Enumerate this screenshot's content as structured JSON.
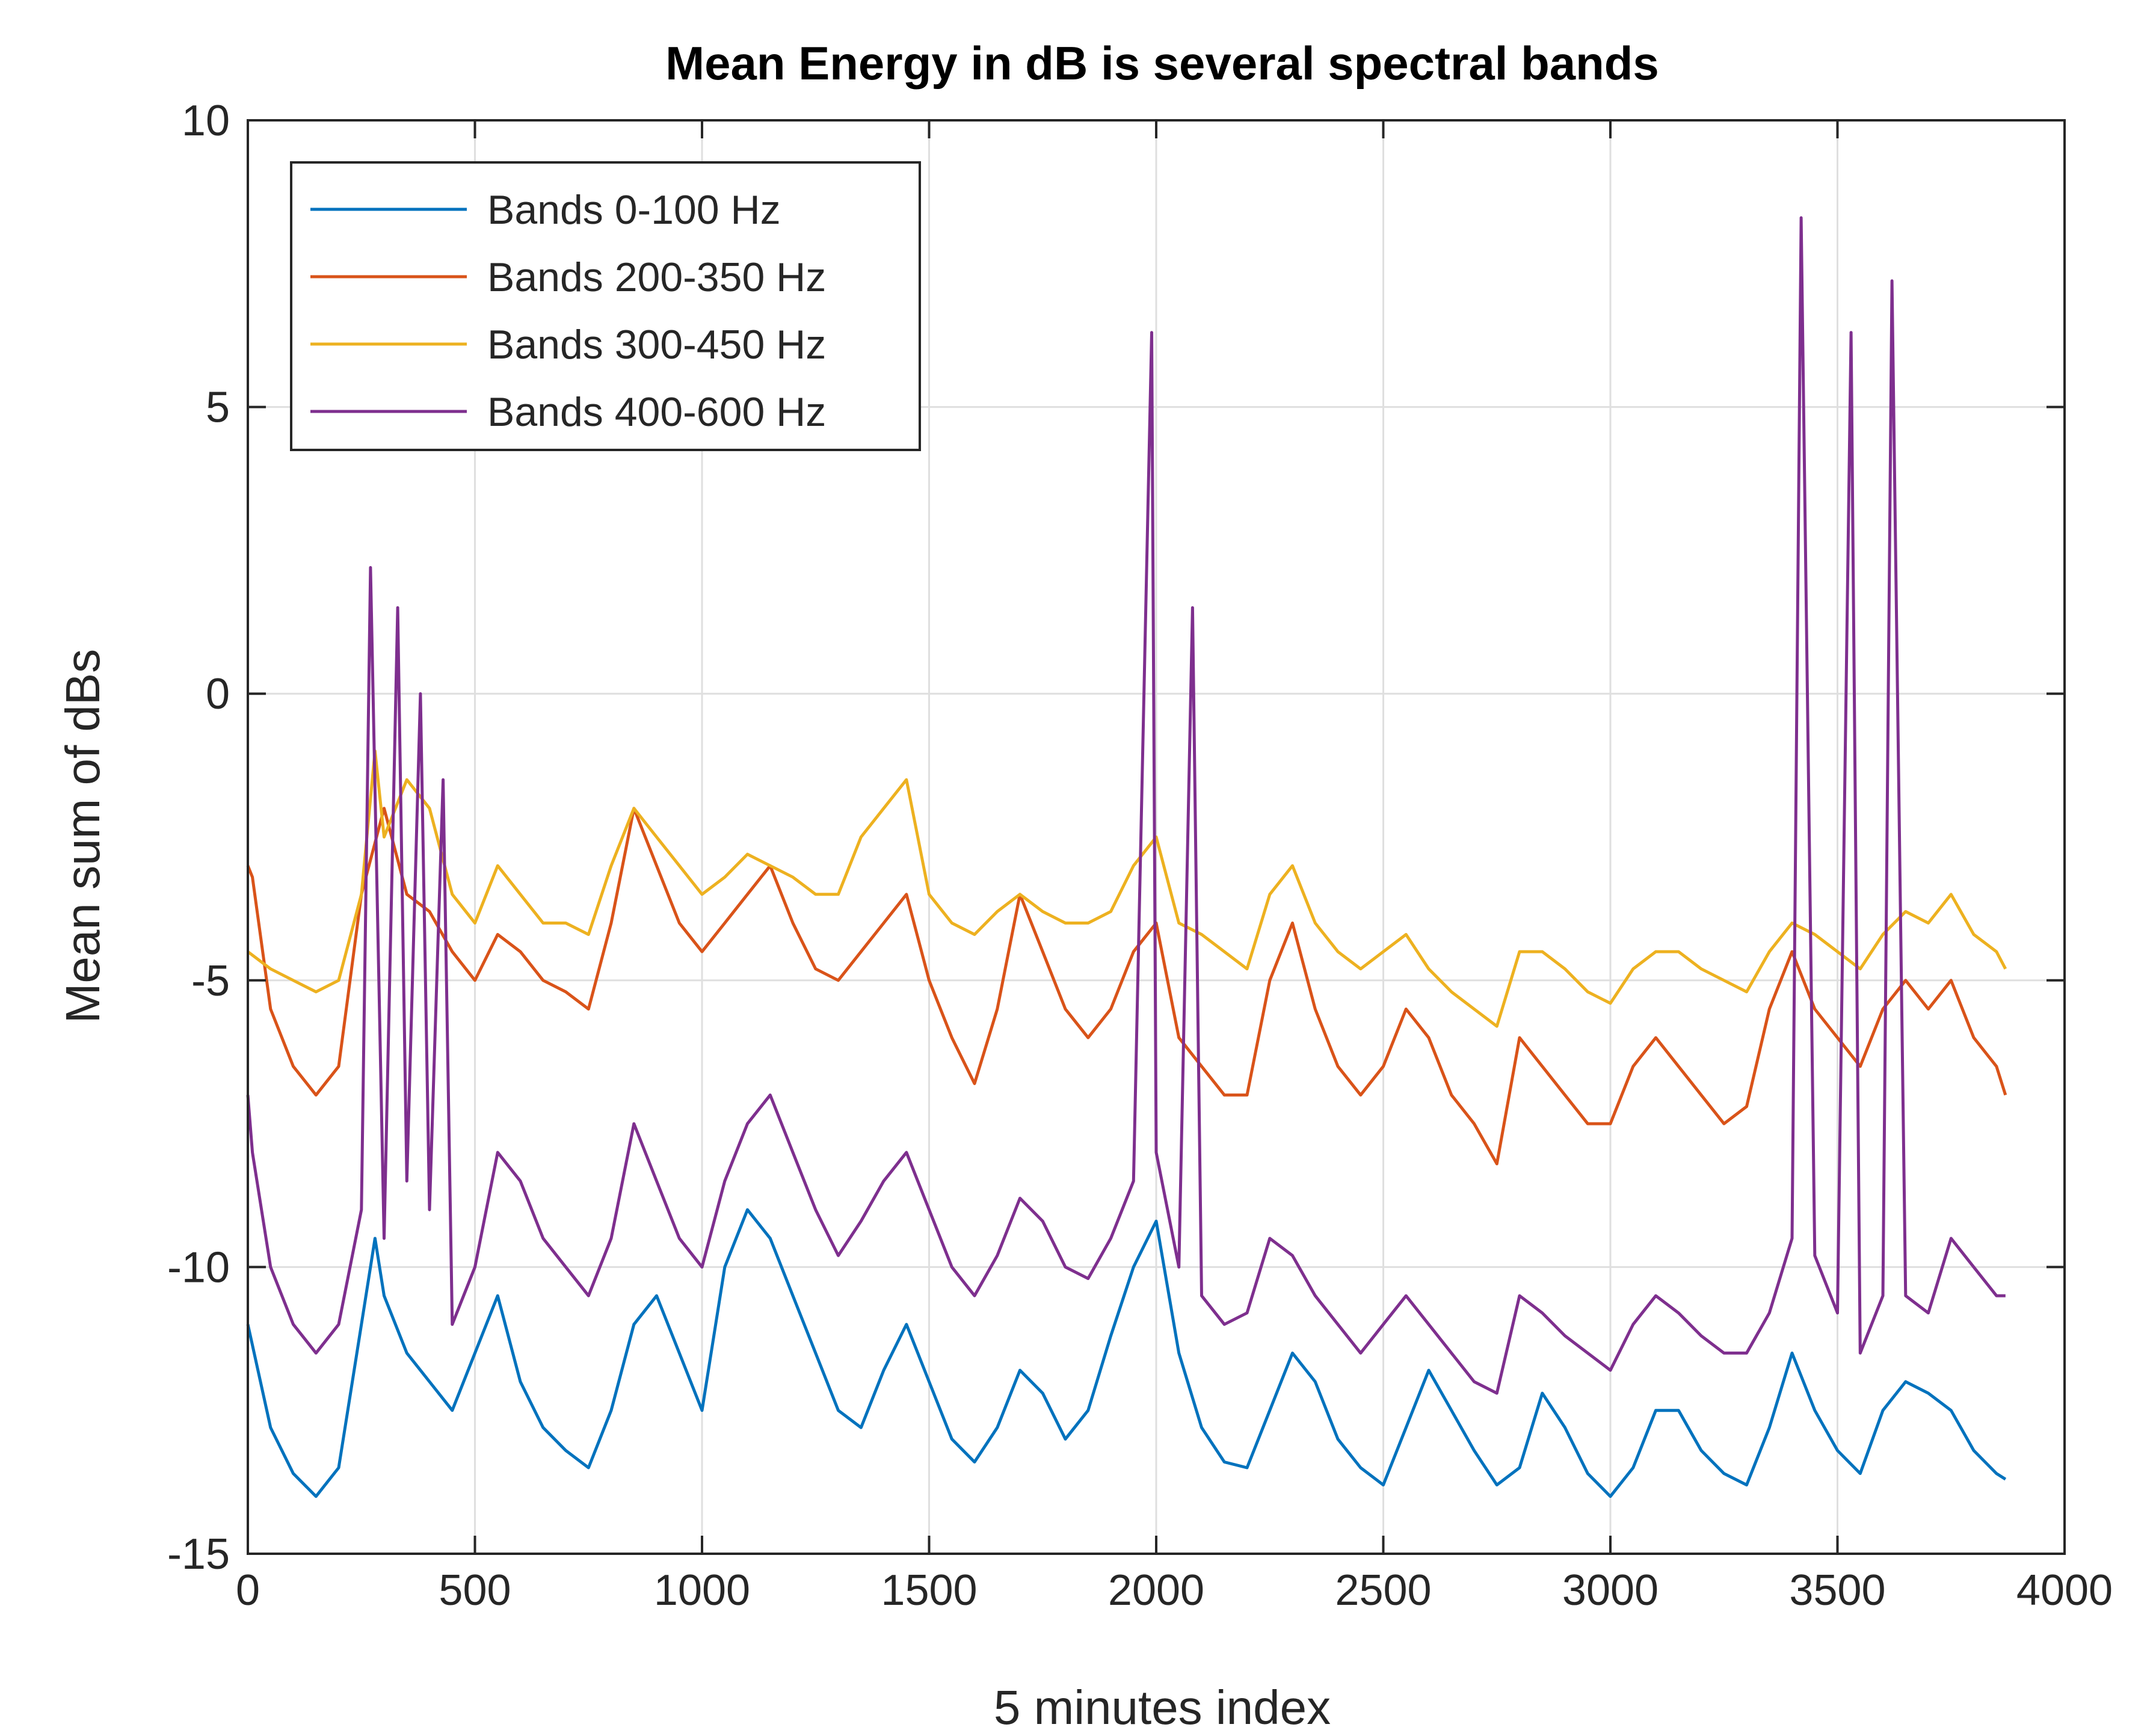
{
  "chart_data": {
    "type": "line",
    "title": "Mean Energy in dB is several spectral bands",
    "xlabel": "5 minutes index",
    "ylabel": "Mean sum of dBs",
    "xlim": [
      0,
      4000
    ],
    "ylim": [
      -15,
      10
    ],
    "xticks": [
      0,
      500,
      1000,
      1500,
      2000,
      2500,
      3000,
      3500,
      4000
    ],
    "yticks": [
      -15,
      -10,
      -5,
      0,
      5,
      10
    ],
    "xtick_labels": [
      "0",
      "500",
      "1000",
      "1500",
      "2000",
      "2500",
      "3000",
      "3500",
      "4000"
    ],
    "ytick_labels": [
      "-15",
      "-10",
      "-5",
      "0",
      "5",
      "10"
    ],
    "grid": true,
    "legend_position": "top-left",
    "series": [
      {
        "name": "Bands 0-100 Hz",
        "color": "#0072BD",
        "x": [
          0,
          50,
          100,
          150,
          200,
          250,
          280,
          300,
          350,
          400,
          450,
          500,
          550,
          600,
          650,
          700,
          750,
          800,
          850,
          900,
          950,
          1000,
          1050,
          1100,
          1150,
          1200,
          1250,
          1300,
          1350,
          1400,
          1450,
          1500,
          1550,
          1600,
          1650,
          1700,
          1750,
          1800,
          1850,
          1900,
          1950,
          2000,
          2050,
          2100,
          2150,
          2200,
          2250,
          2300,
          2350,
          2400,
          2450,
          2500,
          2550,
          2600,
          2650,
          2700,
          2750,
          2800,
          2850,
          2900,
          2950,
          3000,
          3050,
          3100,
          3150,
          3200,
          3250,
          3300,
          3350,
          3400,
          3450,
          3500,
          3550,
          3600,
          3650,
          3700,
          3750,
          3800,
          3850,
          3870
        ],
        "values": [
          -11.0,
          -12.8,
          -13.6,
          -14.0,
          -13.5,
          -11.0,
          -9.5,
          -10.5,
          -11.5,
          -12.0,
          -12.5,
          -11.5,
          -10.5,
          -12.0,
          -12.8,
          -13.2,
          -13.5,
          -12.5,
          -11.0,
          -10.5,
          -11.5,
          -12.5,
          -10.0,
          -9.0,
          -9.5,
          -10.5,
          -11.5,
          -12.5,
          -12.8,
          -11.8,
          -11.0,
          -12.0,
          -13.0,
          -13.4,
          -12.8,
          -11.8,
          -12.2,
          -13.0,
          -12.5,
          -11.2,
          -10.0,
          -9.2,
          -11.5,
          -12.8,
          -13.4,
          -13.5,
          -12.5,
          -11.5,
          -12.0,
          -13.0,
          -13.5,
          -13.8,
          -12.8,
          -11.8,
          -12.5,
          -13.2,
          -13.8,
          -13.5,
          -12.2,
          -12.8,
          -13.6,
          -14.0,
          -13.5,
          -12.5,
          -12.5,
          -13.2,
          -13.6,
          -13.8,
          -12.8,
          -11.5,
          -12.5,
          -13.2,
          -13.6,
          -12.5,
          -12.0,
          -12.2,
          -12.5,
          -13.2,
          -13.6,
          -13.7
        ]
      },
      {
        "name": "Bands 200-350 Hz",
        "color": "#D95319",
        "x": [
          0,
          10,
          50,
          100,
          150,
          200,
          250,
          300,
          350,
          400,
          450,
          500,
          550,
          600,
          650,
          700,
          750,
          800,
          850,
          900,
          950,
          1000,
          1050,
          1100,
          1150,
          1200,
          1250,
          1300,
          1350,
          1400,
          1450,
          1500,
          1550,
          1600,
          1650,
          1700,
          1750,
          1800,
          1850,
          1900,
          1950,
          2000,
          2050,
          2100,
          2150,
          2200,
          2250,
          2300,
          2350,
          2400,
          2450,
          2500,
          2550,
          2600,
          2650,
          2700,
          2750,
          2800,
          2850,
          2900,
          2950,
          3000,
          3050,
          3100,
          3150,
          3200,
          3250,
          3300,
          3350,
          3400,
          3450,
          3500,
          3550,
          3600,
          3650,
          3700,
          3750,
          3800,
          3850,
          3870
        ],
        "values": [
          -3.0,
          -3.2,
          -5.5,
          -6.5,
          -7.0,
          -6.5,
          -3.5,
          -2.0,
          -3.5,
          -3.8,
          -4.5,
          -5.0,
          -4.2,
          -4.5,
          -5.0,
          -5.2,
          -5.5,
          -4.0,
          -2.0,
          -3.0,
          -4.0,
          -4.5,
          -4.0,
          -3.5,
          -3.0,
          -4.0,
          -4.8,
          -5.0,
          -4.5,
          -4.0,
          -3.5,
          -5.0,
          -6.0,
          -6.8,
          -5.5,
          -3.5,
          -4.5,
          -5.5,
          -6.0,
          -5.5,
          -4.5,
          -4.0,
          -6.0,
          -6.5,
          -7.0,
          -7.0,
          -5.0,
          -4.0,
          -5.5,
          -6.5,
          -7.0,
          -6.5,
          -5.5,
          -6.0,
          -7.0,
          -7.5,
          -8.2,
          -6.0,
          -6.5,
          -7.0,
          -7.5,
          -7.5,
          -6.5,
          -6.0,
          -6.5,
          -7.0,
          -7.5,
          -7.2,
          -5.5,
          -4.5,
          -5.5,
          -6.0,
          -6.5,
          -5.5,
          -5.0,
          -5.5,
          -5.0,
          -6.0,
          -6.5,
          -7.0
        ]
      },
      {
        "name": "Bands 300-450 Hz",
        "color": "#EDB120",
        "x": [
          0,
          50,
          100,
          150,
          200,
          250,
          280,
          300,
          350,
          400,
          450,
          500,
          550,
          600,
          650,
          700,
          750,
          800,
          850,
          900,
          950,
          1000,
          1050,
          1100,
          1150,
          1200,
          1250,
          1300,
          1350,
          1400,
          1450,
          1500,
          1550,
          1600,
          1650,
          1700,
          1750,
          1800,
          1850,
          1900,
          1950,
          2000,
          2050,
          2100,
          2150,
          2200,
          2250,
          2300,
          2350,
          2400,
          2450,
          2500,
          2550,
          2600,
          2650,
          2700,
          2750,
          2800,
          2850,
          2900,
          2950,
          3000,
          3050,
          3100,
          3150,
          3200,
          3250,
          3300,
          3350,
          3400,
          3450,
          3500,
          3550,
          3600,
          3650,
          3700,
          3750,
          3800,
          3850,
          3870
        ],
        "values": [
          -4.5,
          -4.8,
          -5.0,
          -5.2,
          -5.0,
          -3.5,
          -1.0,
          -2.5,
          -1.5,
          -2.0,
          -3.5,
          -4.0,
          -3.0,
          -3.5,
          -4.0,
          -4.0,
          -4.2,
          -3.0,
          -2.0,
          -2.5,
          -3.0,
          -3.5,
          -3.2,
          -2.8,
          -3.0,
          -3.2,
          -3.5,
          -3.5,
          -2.5,
          -2.0,
          -1.5,
          -3.5,
          -4.0,
          -4.2,
          -3.8,
          -3.5,
          -3.8,
          -4.0,
          -4.0,
          -3.8,
          -3.0,
          -2.5,
          -4.0,
          -4.2,
          -4.5,
          -4.8,
          -3.5,
          -3.0,
          -4.0,
          -4.5,
          -4.8,
          -4.5,
          -4.2,
          -4.8,
          -5.2,
          -5.5,
          -5.8,
          -4.5,
          -4.5,
          -4.8,
          -5.2,
          -5.4,
          -4.8,
          -4.5,
          -4.5,
          -4.8,
          -5.0,
          -5.2,
          -4.5,
          -4.0,
          -4.2,
          -4.5,
          -4.8,
          -4.2,
          -3.8,
          -4.0,
          -3.5,
          -4.2,
          -4.5,
          -4.8
        ]
      },
      {
        "name": "Bands 400-600 Hz",
        "color": "#7E2F8E",
        "x": [
          0,
          10,
          50,
          100,
          150,
          200,
          250,
          270,
          300,
          330,
          350,
          380,
          400,
          430,
          450,
          500,
          550,
          600,
          650,
          700,
          750,
          800,
          850,
          900,
          950,
          1000,
          1050,
          1100,
          1150,
          1200,
          1250,
          1300,
          1350,
          1400,
          1450,
          1500,
          1550,
          1600,
          1650,
          1700,
          1750,
          1800,
          1850,
          1900,
          1950,
          1990,
          2000,
          2050,
          2080,
          2100,
          2150,
          2200,
          2250,
          2300,
          2350,
          2400,
          2450,
          2500,
          2550,
          2600,
          2650,
          2700,
          2750,
          2800,
          2850,
          2900,
          2950,
          3000,
          3050,
          3100,
          3150,
          3200,
          3250,
          3300,
          3350,
          3400,
          3420,
          3450,
          3500,
          3530,
          3550,
          3600,
          3620,
          3650,
          3700,
          3750,
          3800,
          3850,
          3870
        ],
        "values": [
          -7.0,
          -8.0,
          -10.0,
          -11.0,
          -11.5,
          -11.0,
          -9.0,
          2.2,
          -9.5,
          1.5,
          -8.5,
          0.0,
          -9.0,
          -1.5,
          -11.0,
          -10.0,
          -8.0,
          -8.5,
          -9.5,
          -10.0,
          -10.5,
          -9.5,
          -7.5,
          -8.5,
          -9.5,
          -10.0,
          -8.5,
          -7.5,
          -7.0,
          -8.0,
          -9.0,
          -9.8,
          -9.2,
          -8.5,
          -8.0,
          -9.0,
          -10.0,
          -10.5,
          -9.8,
          -8.8,
          -9.2,
          -10.0,
          -10.2,
          -9.5,
          -8.5,
          6.3,
          -8.0,
          -10.0,
          1.5,
          -10.5,
          -11.0,
          -10.8,
          -9.5,
          -9.8,
          -10.5,
          -11.0,
          -11.5,
          -11.0,
          -10.5,
          -11.0,
          -11.5,
          -12.0,
          -12.2,
          -10.5,
          -10.8,
          -11.2,
          -11.5,
          -11.8,
          -11.0,
          -10.5,
          -10.8,
          -11.2,
          -11.5,
          -11.5,
          -10.8,
          -9.5,
          8.3,
          -9.8,
          -10.8,
          6.3,
          -11.5,
          -10.5,
          7.2,
          -10.5,
          -10.8,
          -9.5,
          -10.0,
          -10.5,
          -10.5
        ]
      }
    ]
  }
}
